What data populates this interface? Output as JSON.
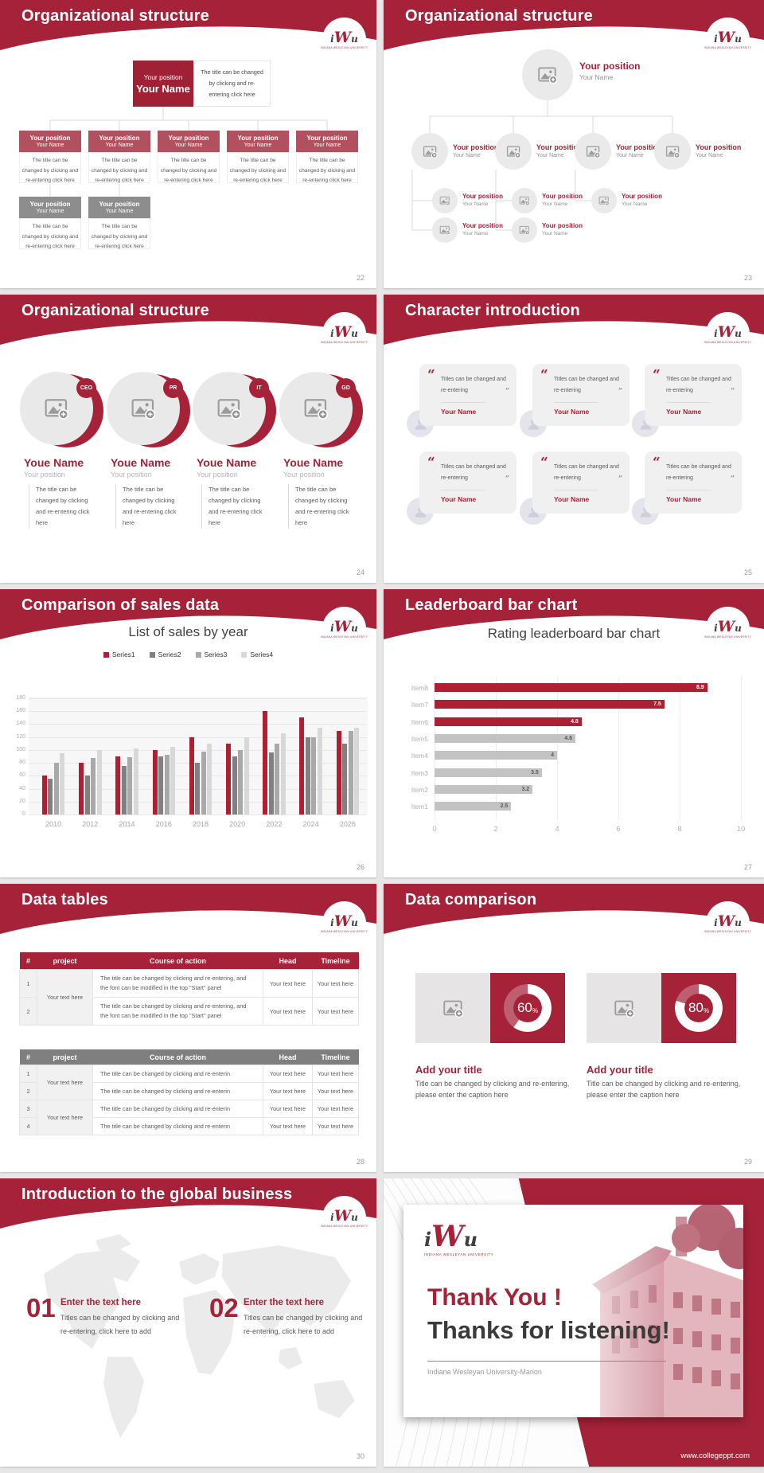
{
  "colors": {
    "accent": "#A52238",
    "accent_deep": "#A02035",
    "org_box_red": "#B15160",
    "org_box_gray": "#8D8D8D",
    "table_header_gray": "#7F7F7F"
  },
  "logo": {
    "mark_i": "i",
    "mark_w": "W",
    "mark_u": "u",
    "subtext": "INDIANA WESLEYAN UNIVERSITY"
  },
  "slides": {
    "s22": {
      "title": "Organizational structure",
      "page": "22",
      "root": {
        "position": "Your position",
        "name": "Your Name"
      },
      "root_note": "The title can be changed by clicking and re-entering click here",
      "caption": "The title can be changed by clicking and re-entering click here",
      "children_red": [
        {
          "position": "Your position",
          "name": "Your Name"
        },
        {
          "position": "Your position",
          "name": "Your Name"
        },
        {
          "position": "Your position",
          "name": "Your Name"
        },
        {
          "position": "Your position",
          "name": "Your Name"
        },
        {
          "position": "Your position",
          "name": "Your Name"
        }
      ],
      "children_gray": [
        {
          "position": "Your position",
          "name": "Your Name"
        },
        {
          "position": "Your position",
          "name": "Your Name"
        }
      ]
    },
    "s23": {
      "title": "Organizational structure",
      "page": "23",
      "root": {
        "position": "Your position",
        "name": "Your Name"
      },
      "level2": [
        {
          "position": "Your position",
          "name": "Your Name"
        },
        {
          "position": "Your position",
          "name": "Your Name"
        },
        {
          "position": "Your position",
          "name": "Your Name"
        },
        {
          "position": "Your position",
          "name": "Your Name"
        }
      ],
      "level3": [
        {
          "position": "Your position",
          "name": "Your Name"
        },
        {
          "position": "Your position",
          "name": "Your Name"
        },
        {
          "position": "Your position",
          "name": "Your Name"
        }
      ],
      "level4": [
        {
          "position": "Your position",
          "name": "Your Name"
        },
        {
          "position": "Your position",
          "name": "Your Name"
        }
      ]
    },
    "s24": {
      "title": "Organizational structure",
      "page": "24",
      "members": [
        {
          "badge": "CEO",
          "name": "Youe Name",
          "role": "Your position",
          "text": "The title can be changed by clicking and re-entering click here"
        },
        {
          "badge": "PR",
          "name": "Youe Name",
          "role": "Your position",
          "text": "The title can be changed by clicking and re-entering click here"
        },
        {
          "badge": "IT",
          "name": "Youe Name",
          "role": "Your position",
          "text": "The title can be changed by clicking and re-entering click here"
        },
        {
          "badge": "GD",
          "name": "Youe Name",
          "role": "Your position",
          "text": "The title can be changed by clicking and re-entering click here"
        }
      ]
    },
    "s25": {
      "title": "Character introduction",
      "page": "25",
      "cards": [
        {
          "quote": "Titles can be changed and re-entering",
          "name": "Your Name"
        },
        {
          "quote": "Titles can be changed and re-entering",
          "name": "Your Name"
        },
        {
          "quote": "Titles can be changed and re-entering",
          "name": "Your Name"
        },
        {
          "quote": "Titles can be changed and re-entering",
          "name": "Your Name"
        },
        {
          "quote": "Titles can be changed and re-entering",
          "name": "Your Name"
        },
        {
          "quote": "Titles can be changed and re-entering",
          "name": "Your Name"
        }
      ]
    },
    "s26": {
      "title": "Comparison of sales data",
      "page": "26"
    },
    "s27": {
      "title": "Leaderboard bar chart",
      "page": "27"
    },
    "s28": {
      "title": "Data tables",
      "page": "28",
      "table1": {
        "headers": [
          "#",
          "project",
          "Course of action",
          "Head",
          "Timeline"
        ],
        "project": [
          "Your text here"
        ],
        "rows": [
          {
            "num": "1",
            "course": "The title can be changed by clicking and re-entering, and the font can be modified in the top \"Start\" panel",
            "head": "Your text here",
            "timeline": "Your text here"
          },
          {
            "num": "2",
            "course": "The title can be changed by clicking and re-entering, and the font can be modified in the top \"Start\" panel",
            "head": "Your text here",
            "timeline": "Your text here"
          }
        ]
      },
      "table2": {
        "headers": [
          "#",
          "project",
          "Course of action",
          "Head",
          "Timeline"
        ],
        "project": [
          "Your text here",
          "Your text here"
        ],
        "rows": [
          {
            "num": "1",
            "course": "The title can be changed by clicking and re-enterin",
            "head": "Your text here",
            "timeline": "Your text here"
          },
          {
            "num": "2",
            "course": "The title can be changed by clicking and re-enterin",
            "head": "Your text here",
            "timeline": "Your text here"
          },
          {
            "num": "3",
            "course": "The title can be changed by clicking and re-enterin",
            "head": "Your text here",
            "timeline": "Your text here"
          },
          {
            "num": "4",
            "course": "The title can be changed by clicking and re-enterin",
            "head": "Your text here",
            "timeline": "Your text here"
          }
        ]
      }
    },
    "s29": {
      "title": "Data comparison",
      "page": "29",
      "items": [
        {
          "percent": 60,
          "suffix": "%",
          "heading": "Add your title",
          "caption": "Title can be changed by clicking and re-entering, please enter the caption here"
        },
        {
          "percent": 80,
          "suffix": "%",
          "heading": "Add your title",
          "caption": "Title can be changed by clicking and re-entering, please enter the caption here"
        }
      ]
    },
    "s30": {
      "title": "Introduction to the global business",
      "page": "30",
      "items": [
        {
          "number": "01",
          "heading": "Enter the text here",
          "caption": "Titles can be changed by clicking and re-entering, click here to add"
        },
        {
          "number": "02",
          "heading": "Enter the text here",
          "caption": "Titles can be changed by clicking and re-entering, click here to add"
        }
      ]
    },
    "s31": {
      "thank_line1": "Thank You !",
      "thank_line2": "Thanks for listening!",
      "subtitle": "Indiana Wesleyan University-Marion",
      "footer": "www.collegeppt.com"
    }
  },
  "chart_data": [
    {
      "type": "bar",
      "title": "List of sales by year",
      "categories": [
        "2010",
        "2012",
        "2014",
        "2016",
        "2018",
        "2020",
        "2022",
        "2024",
        "2026"
      ],
      "series": [
        {
          "name": "Series1",
          "color": "#AE1F34",
          "values": [
            60,
            80,
            90,
            100,
            120,
            110,
            160,
            150,
            130
          ]
        },
        {
          "name": "Series2",
          "color": "#808080",
          "values": [
            55,
            60,
            75,
            90,
            80,
            90,
            96,
            120,
            110
          ]
        },
        {
          "name": "Series3",
          "color": "#A9A9A9",
          "values": [
            80,
            87,
            89,
            92,
            98,
            100,
            110,
            120,
            130
          ]
        },
        {
          "name": "Series4",
          "color": "#D8D8D8",
          "values": [
            95,
            100,
            102,
            105,
            110,
            120,
            126,
            135,
            135
          ]
        }
      ],
      "xlabel": "",
      "ylabel": "",
      "ylim": [
        0,
        180
      ],
      "ytick": 20,
      "grid": true,
      "legend_position": "top"
    },
    {
      "type": "bar_horizontal",
      "title": "Rating leaderboard bar chart",
      "categories": [
        "Item8",
        "Item7",
        "Item6",
        "Item5",
        "Item4",
        "Item3",
        "Item2",
        "Item1"
      ],
      "values": [
        8.9,
        7.5,
        4.8,
        4.6,
        4,
        3.5,
        3.2,
        2.5
      ],
      "colors": [
        "#AE1F34",
        "#AE1F34",
        "#AE1F34",
        "#C3C3C3",
        "#C3C3C3",
        "#C3C3C3",
        "#C3C3C3",
        "#C3C3C3"
      ],
      "xlim": [
        0,
        10
      ],
      "xtick": 2,
      "grid": true,
      "legend_position": "none"
    }
  ]
}
